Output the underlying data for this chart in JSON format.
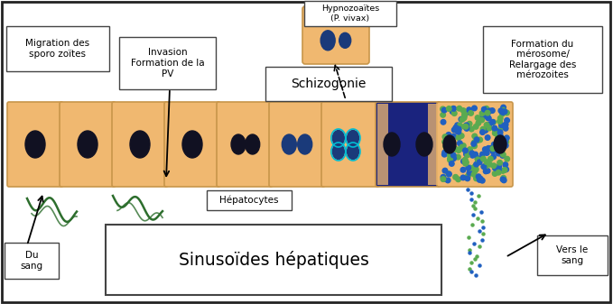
{
  "bg_color": "#ffffff",
  "border_color": "#222222",
  "cell_fill": "#f0b870",
  "cell_edge": "#c8964a",
  "nucleus_dark": "#111122",
  "nucleus_blue": "#1a3a7a",
  "sinusoid_label": "Sinusoïdes hépatiques",
  "hepatocyte_label": "Hépatocytes",
  "du_sang_label": "Du\nsang",
  "vers_sang_label": "Vers le\nsang",
  "migration_label": "Migration des\nsporo zoïtes",
  "invasion_label": "Invasion\nFormation de la\nPV",
  "schizogonie_label": "Schizogonie",
  "hypnozoites_label": "Hypnozoaïtes\n(P. vivax)",
  "formation_label": "Formation du\nmérosome/\nRelargage des\nmérozoites",
  "label_box_color": "#ffffff",
  "sporozoite_color": "#2d6e2d",
  "blue_schizont_color": "#1a237e",
  "merozoite_green": "#5aaa50",
  "merozoite_blue": "#2060c0",
  "cyan_color": "#00bcd4",
  "fig_width": 6.79,
  "fig_height": 3.37,
  "dpi": 100
}
